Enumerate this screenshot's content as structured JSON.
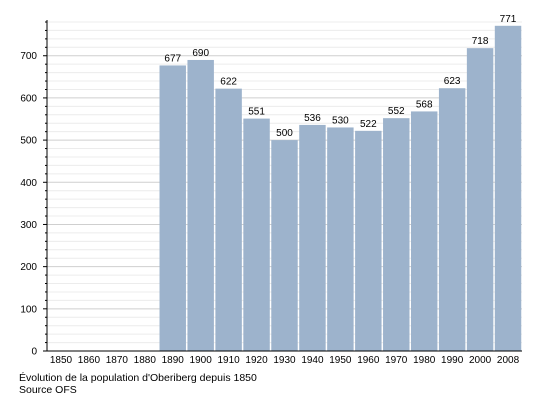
{
  "chart_data": {
    "type": "bar",
    "categories": [
      "1850",
      "1860",
      "1870",
      "1880",
      "1890",
      "1900",
      "1910",
      "1920",
      "1930",
      "1940",
      "1950",
      "1960",
      "1970",
      "1980",
      "1990",
      "2000",
      "2008"
    ],
    "values": [
      null,
      null,
      null,
      null,
      677,
      690,
      622,
      551,
      500,
      536,
      530,
      522,
      552,
      568,
      623,
      718,
      771
    ],
    "data_labels": [
      "",
      "",
      "",
      "",
      "677",
      "690",
      "622",
      "551",
      "500",
      "536",
      "530",
      "522",
      "552",
      "568",
      "623",
      "718",
      "771"
    ],
    "y_ticks": [
      0,
      100,
      200,
      300,
      400,
      500,
      600,
      700
    ],
    "ylim": [
      0,
      780
    ],
    "grid": true,
    "bar_color": "#9db3cc",
    "title": "",
    "xlabel": "",
    "ylabel": ""
  },
  "caption": {
    "line1": "Évolution de la population d'Oberiberg depuis 1850",
    "line2": "Source OFS"
  }
}
